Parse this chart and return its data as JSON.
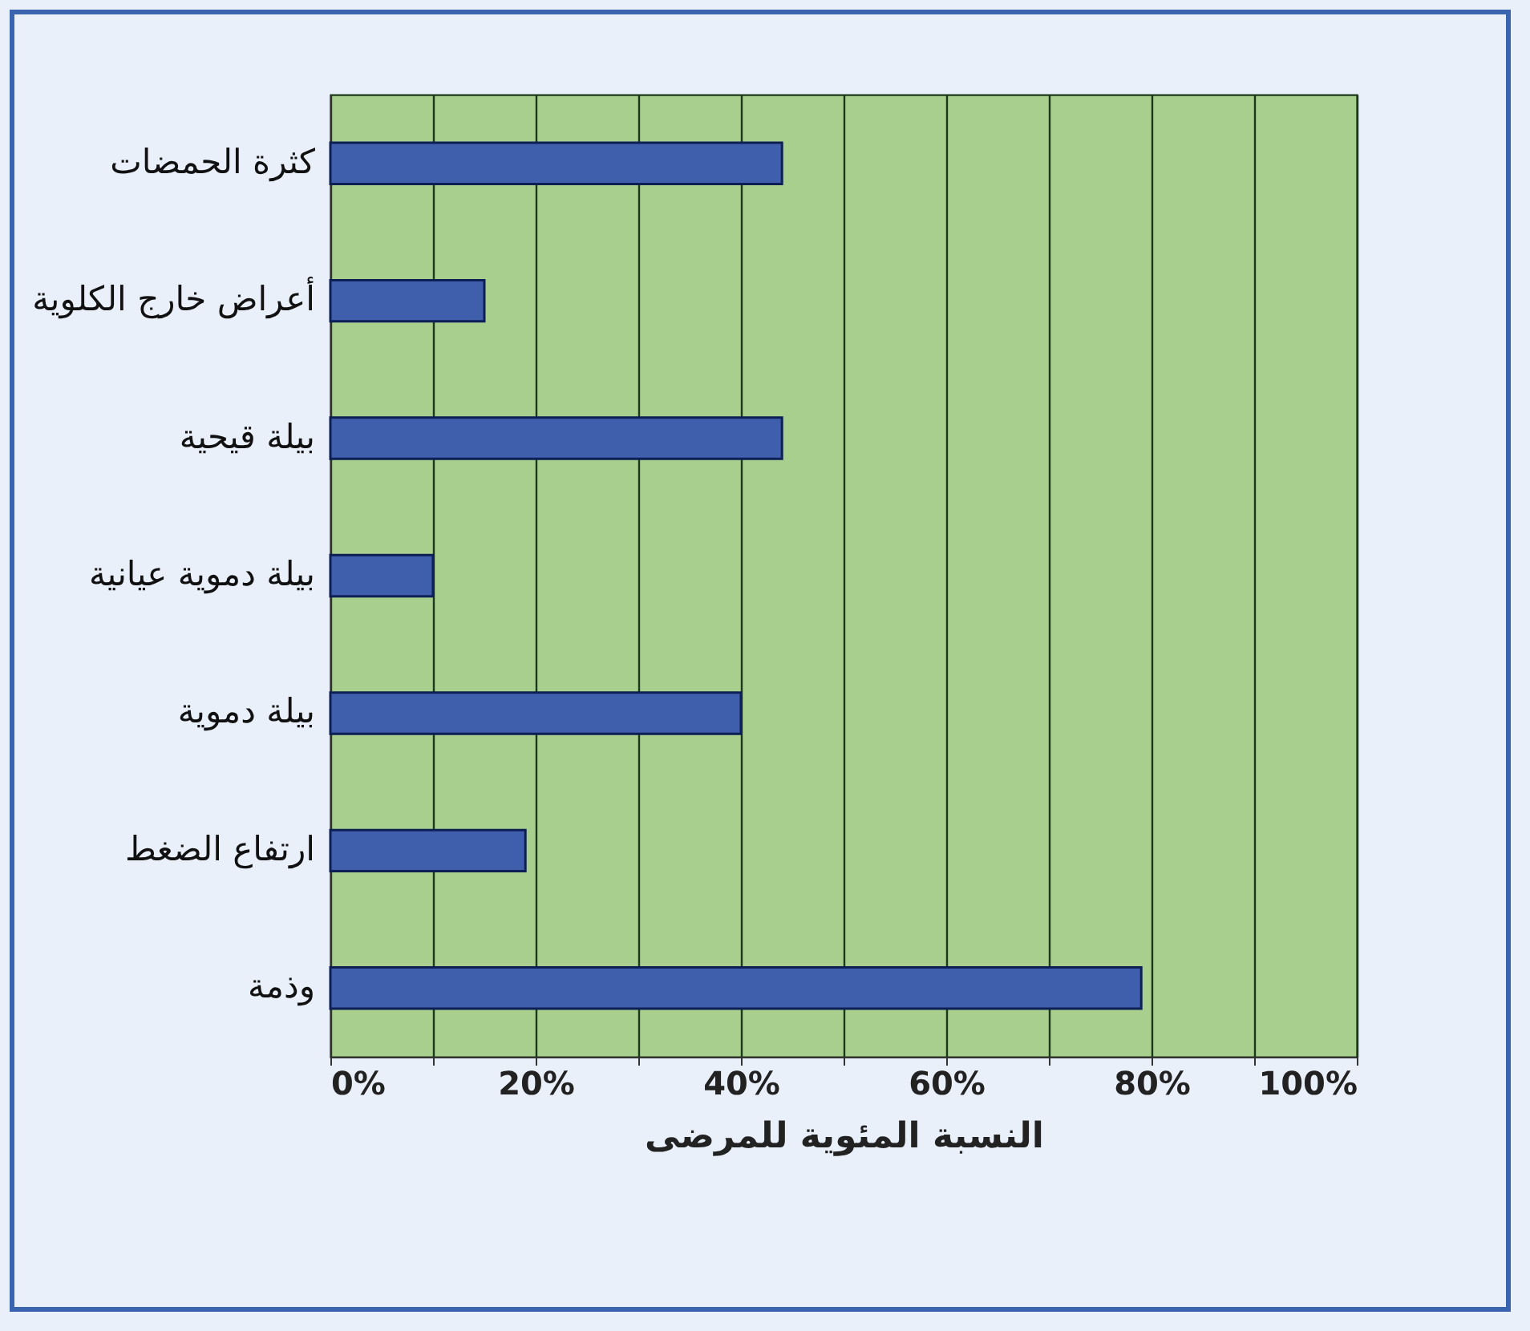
{
  "chart_data": {
    "type": "bar",
    "orientation": "horizontal",
    "xlabel": "النسبة المئوية للمرضى",
    "categories": [
      "كثرة الحمضات",
      "أعراض خارج الكلوية",
      "بيلة قيحية",
      "بيلة دموية عيانية",
      "بيلة دموية",
      "ارتفاع الضغط",
      "وذمة"
    ],
    "values": [
      44,
      15,
      44,
      10,
      40,
      19,
      79
    ],
    "color": "#3f5fad",
    "xlim": [
      0,
      100
    ],
    "xticks": [
      {
        "value": 0,
        "label": "0%"
      },
      {
        "value": 10,
        "label": null
      },
      {
        "value": 20,
        "label": "20%"
      },
      {
        "value": 30,
        "label": null
      },
      {
        "value": 40,
        "label": "40%"
      },
      {
        "value": 50,
        "label": null
      },
      {
        "value": 60,
        "label": "60%"
      },
      {
        "value": 70,
        "label": null
      },
      {
        "value": 80,
        "label": "80%"
      },
      {
        "value": 90,
        "label": null
      },
      {
        "value": 100,
        "label": "100%"
      }
    ],
    "grid": "x"
  }
}
